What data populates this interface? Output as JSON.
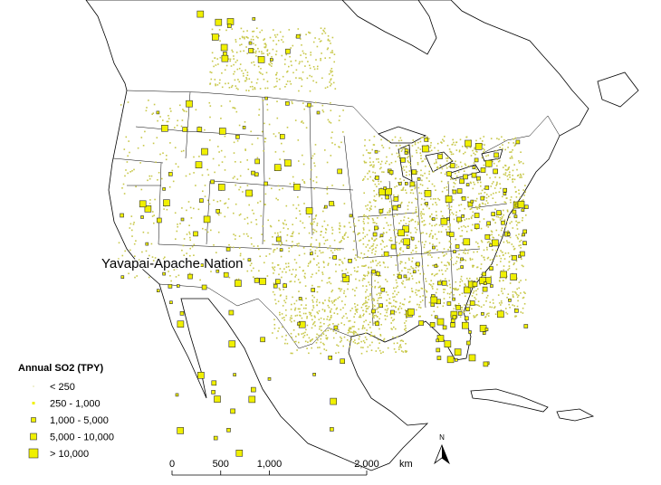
{
  "map_label": "Yavapai-Apache Nation",
  "legend": {
    "title": "Annual SO2 (TPY)",
    "items": [
      "< 250",
      "250 - 1,000",
      "1,000 - 5,000",
      "5,000 - 10,000",
      "> 10,000"
    ]
  },
  "scale_bar": {
    "ticks": [
      {
        "value": 0,
        "label": "0"
      },
      {
        "value": 500,
        "label": "500"
      },
      {
        "value": 1000,
        "label": "1,000"
      },
      {
        "value": 2000,
        "label": "2,000"
      }
    ],
    "unit": "km"
  },
  "north_arrow": "N"
}
